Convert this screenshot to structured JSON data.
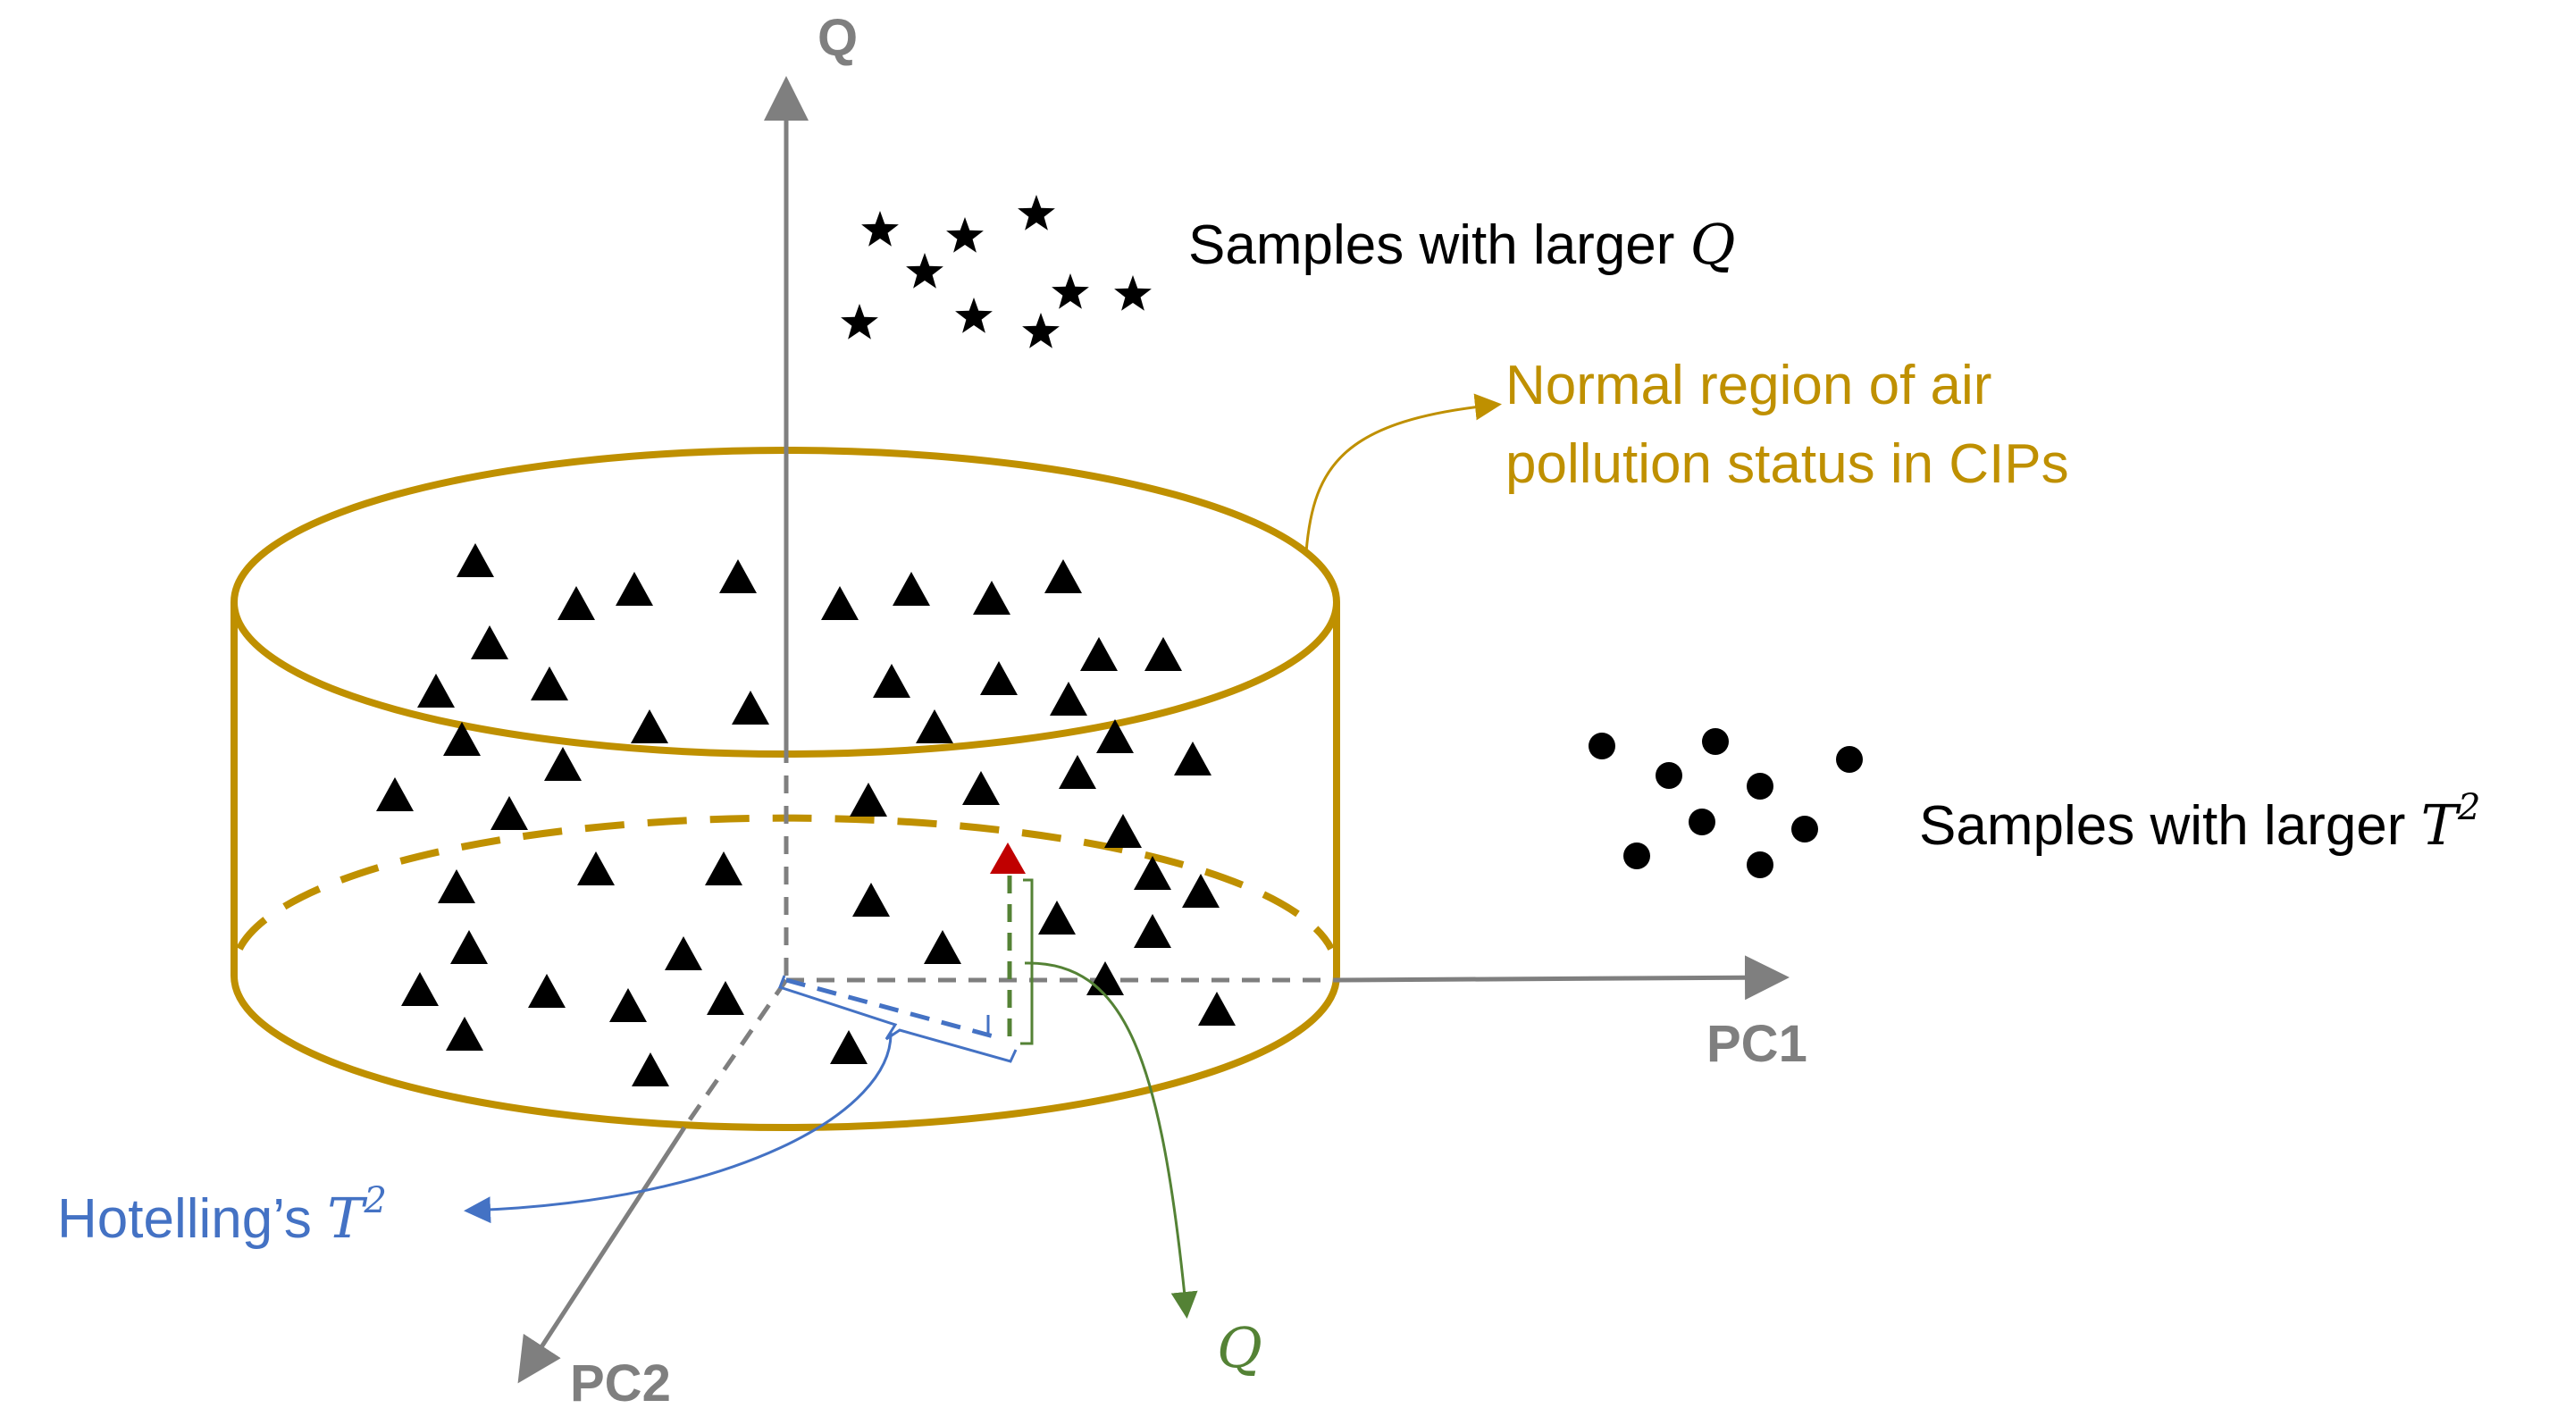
{
  "axes": {
    "q_label": "Q",
    "pc1_label": "PC1",
    "pc2_label": "PC2"
  },
  "annotations": {
    "larger_q": {
      "text": "Samples with larger ",
      "symbol": "Q"
    },
    "normal_region": {
      "line1": "Normal region of air",
      "line2": "pollution status in CIPs"
    },
    "larger_t2": {
      "text": "Samples with larger ",
      "symbol": "T",
      "sup": "2"
    },
    "hotelling": {
      "text": "Hotelling’s ",
      "symbol": "T",
      "sup": "2"
    },
    "q_distance": {
      "symbol": "Q"
    }
  },
  "colors": {
    "axis": "#7f7f7f",
    "cylinder": "#bf9000",
    "samples": "#000000",
    "highlight_sample": "#c00000",
    "t2_component": "#4472c4",
    "q_component": "#548235"
  },
  "markers": {
    "star": "star-sample",
    "dot": "circle-sample",
    "triangle": "triangle-sample"
  }
}
